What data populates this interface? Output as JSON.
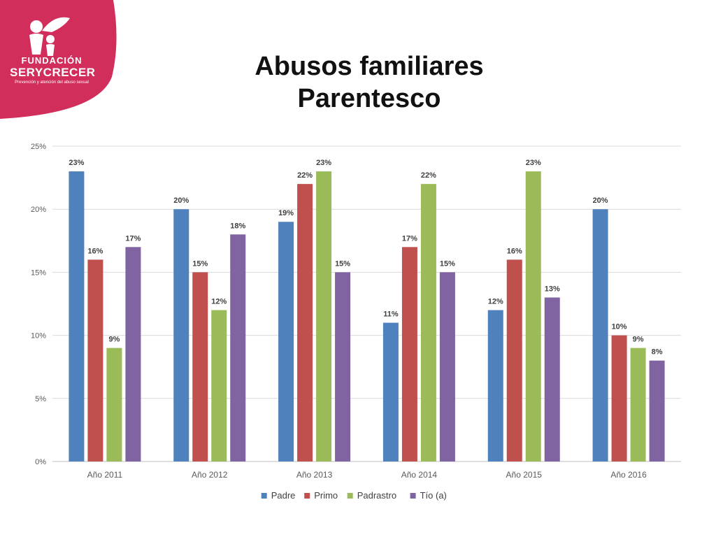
{
  "logo": {
    "line1": "FUNDACIÓN",
    "line2": "SERYCRECER",
    "tagline": "Prevención y atención del abuso sexual",
    "brand_color": "#d12e5c"
  },
  "title_line1": "Abusos familiares",
  "title_line2": "Parentesco",
  "chart_data": {
    "type": "bar",
    "categories": [
      "Año 2011",
      "Año 2012",
      "Año 2013",
      "Año 2014",
      "Año 2015",
      "Año 2016"
    ],
    "series": [
      {
        "name": "Padre",
        "color": "#4f81bd",
        "values": [
          23,
          20,
          19,
          11,
          12,
          20
        ]
      },
      {
        "name": "Primo",
        "color": "#c0504d",
        "values": [
          16,
          15,
          22,
          17,
          16,
          10
        ]
      },
      {
        "name": "Padrastro",
        "color": "#9bbb59",
        "values": [
          9,
          12,
          23,
          22,
          23,
          9
        ]
      },
      {
        "name": "Tío (a)",
        "color": "#8064a2",
        "values": [
          17,
          18,
          15,
          15,
          13,
          8
        ]
      }
    ],
    "yticks": [
      "0%",
      "5%",
      "10%",
      "15%",
      "20%",
      "25%"
    ],
    "ylim": [
      0,
      25
    ],
    "value_suffix": "%",
    "grid": true,
    "legend_position": "bottom"
  }
}
